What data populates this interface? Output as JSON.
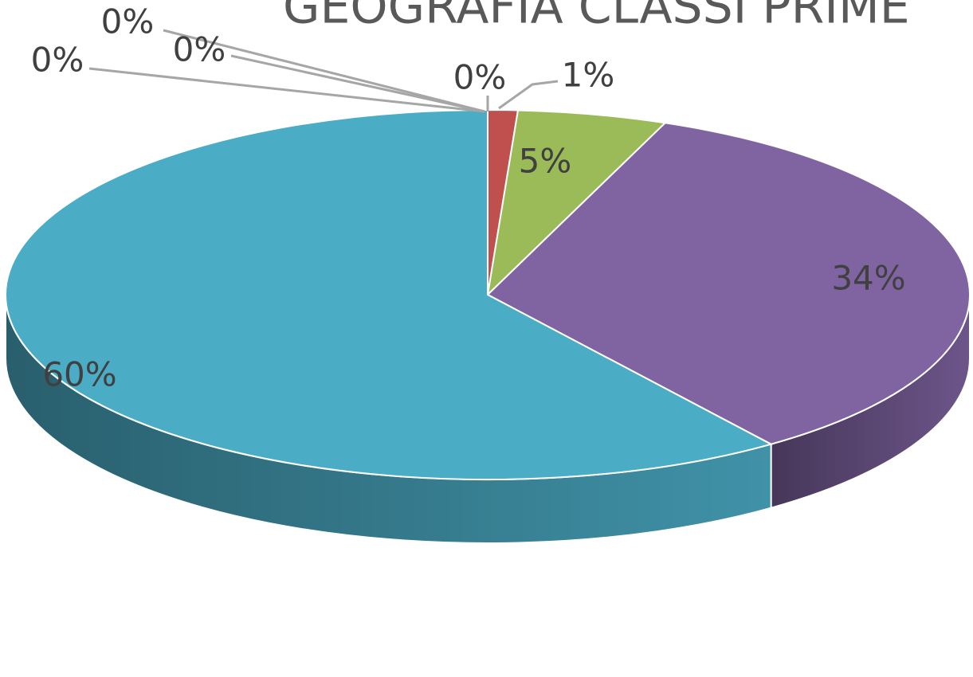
{
  "chart_data": {
    "type": "pie",
    "title": "GEOGRAFIA CLASSI PRIME",
    "values": [
      0,
      1,
      5,
      34,
      60,
      0,
      0,
      0
    ],
    "value_labels": [
      "0%",
      "1%",
      "5%",
      "34%",
      "60%",
      "0%",
      "0%",
      "0%"
    ],
    "colors": [
      "#4f81bd",
      "#c0504d",
      "#9bbb59",
      "#8064a2",
      "#4bacc6",
      "#f79646",
      "#2c4d75",
      "#772c2a"
    ]
  }
}
